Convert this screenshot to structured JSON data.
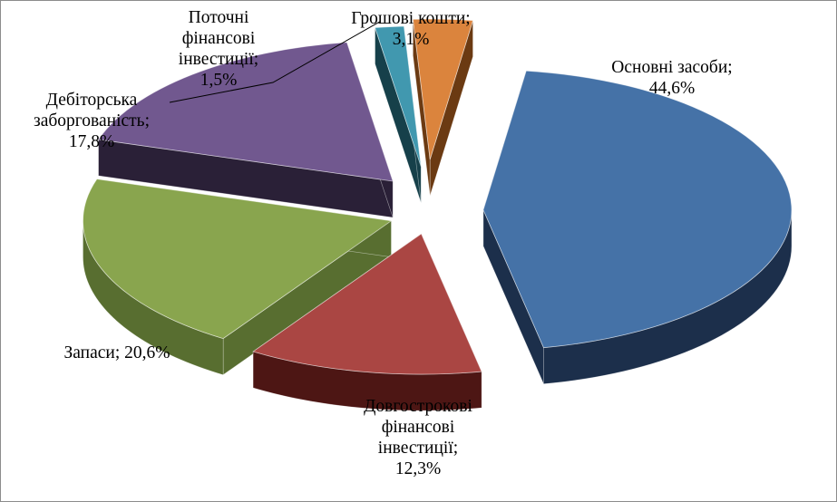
{
  "chart_data": {
    "type": "pie",
    "title": "",
    "exploded": true,
    "three_d": true,
    "slices": [
      {
        "name": "Основні засоби",
        "value": 44.6,
        "label_lines": [
          "Основні засоби;",
          "44,6%"
        ],
        "color": "#4572a7",
        "side_color": "#1c2f4b"
      },
      {
        "name": "Довгострокові фінансові інвестиції",
        "value": 12.3,
        "label_lines": [
          "Довгострокові",
          "фінансові",
          "інвестиції;",
          "12,3%"
        ],
        "color": "#aa4643",
        "side_color": "#4d1614"
      },
      {
        "name": "Запаси",
        "value": 20.6,
        "label_lines": [
          "Запаси; 20,6%"
        ],
        "color": "#89a54e",
        "side_color": "#586e30"
      },
      {
        "name": "Дебіторська заборгованість",
        "value": 17.8,
        "label_lines": [
          "Дебіторська",
          "заборгованість;",
          "17,8%"
        ],
        "color": "#71588f",
        "side_color": "#2a2037"
      },
      {
        "name": "Поточні фінансові інвестиції",
        "value": 1.5,
        "label_lines": [
          "Поточні",
          "фінансові",
          "інвестиції;",
          "1,5%"
        ],
        "color": "#4198af",
        "side_color": "#16404a"
      },
      {
        "name": "Грошові кошти",
        "value": 3.1,
        "label_lines": [
          "Грошові кошти;",
          "3,1%"
        ],
        "color": "#db843d",
        "side_color": "#6b3a12"
      }
    ],
    "legend": "none",
    "data_labels": "outside"
  }
}
